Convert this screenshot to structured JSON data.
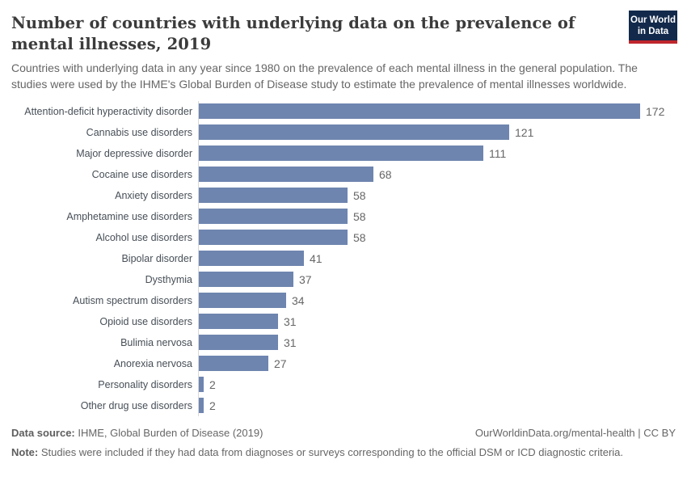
{
  "header": {
    "title": "Number of countries with underlying data on the prevalence of mental illnesses, 2019",
    "subtitle": "Countries with underlying data in any year since 1980 on the prevalence of each mental illness in the general population. The studies were used by the IHME's Global Burden of Disease study to estimate the prevalence of mental illnesses worldwide.",
    "logo": {
      "line1": "Our World",
      "line2": "in Data",
      "bg_color": "#12294b",
      "accent_color": "#c0262d"
    }
  },
  "chart_data": {
    "type": "bar",
    "orientation": "horizontal",
    "title": "Number of countries with underlying data on the prevalence of mental illnesses, 2019",
    "categories": [
      "Attention-deficit hyperactivity disorder",
      "Cannabis use disorders",
      "Major depressive disorder",
      "Cocaine use disorders",
      "Anxiety disorders",
      "Amphetamine use disorders",
      "Alcohol use disorders",
      "Bipolar disorder",
      "Dysthymia",
      "Autism spectrum disorders",
      "Opioid use disorders",
      "Bulimia nervosa",
      "Anorexia nervosa",
      "Personality disorders",
      "Other drug use disorders"
    ],
    "values": [
      172,
      121,
      111,
      68,
      58,
      58,
      58,
      41,
      37,
      34,
      31,
      31,
      27,
      2,
      2
    ],
    "value_labels_shown": true,
    "xlim": [
      0,
      180
    ],
    "grid": false,
    "legend": "none",
    "bar_color": "#6e85af",
    "axis_line_color": "#d9d9d9",
    "label_color": "#474f57",
    "value_color": "#666666"
  },
  "footer": {
    "source_label": "Data source:",
    "source_text": " IHME, Global Burden of Disease (2019)",
    "citation": "OurWorldinData.org/mental-health | CC BY",
    "note_label": "Note:",
    "note_text": " Studies were included if they had data from diagnoses or surveys corresponding to the official DSM or ICD diagnostic criteria."
  }
}
